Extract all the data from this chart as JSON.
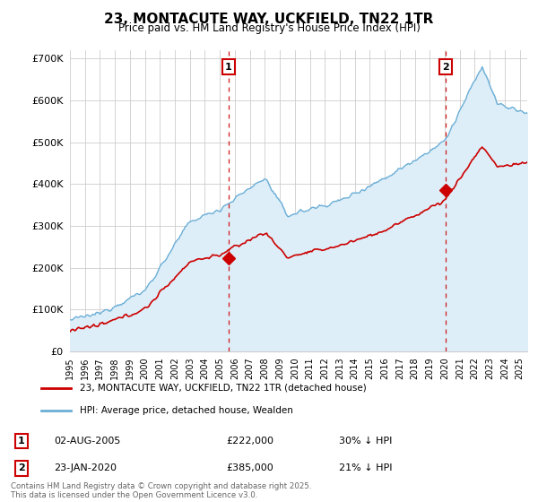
{
  "title": "23, MONTACUTE WAY, UCKFIELD, TN22 1TR",
  "subtitle": "Price paid vs. HM Land Registry's House Price Index (HPI)",
  "ylim": [
    0,
    720000
  ],
  "yticks": [
    0,
    100000,
    200000,
    300000,
    400000,
    500000,
    600000,
    700000
  ],
  "xlim_year": [
    1995,
    2025.5
  ],
  "background_color": "#ffffff",
  "grid_color": "#cccccc",
  "hpi_color": "#6baed6",
  "hpi_fill_color": "#ddeef8",
  "price_color": "#cc0000",
  "vline_color": "#cc0000",
  "annotation_box_color": "#cc0000",
  "legend_label_price": "23, MONTACUTE WAY, UCKFIELD, TN22 1TR (detached house)",
  "legend_label_hpi": "HPI: Average price, detached house, Wealden",
  "transaction1_label": "1",
  "transaction1_date": "02-AUG-2005",
  "transaction1_price": "£222,000",
  "transaction1_note": "30% ↓ HPI",
  "transaction1_year": 2005.58,
  "transaction1_value": 222000,
  "transaction2_label": "2",
  "transaction2_date": "23-JAN-2020",
  "transaction2_price": "£385,000",
  "transaction2_note": "21% ↓ HPI",
  "transaction2_year": 2020.06,
  "transaction2_value": 385000,
  "footer": "Contains HM Land Registry data © Crown copyright and database right 2025.\nThis data is licensed under the Open Government Licence v3.0."
}
